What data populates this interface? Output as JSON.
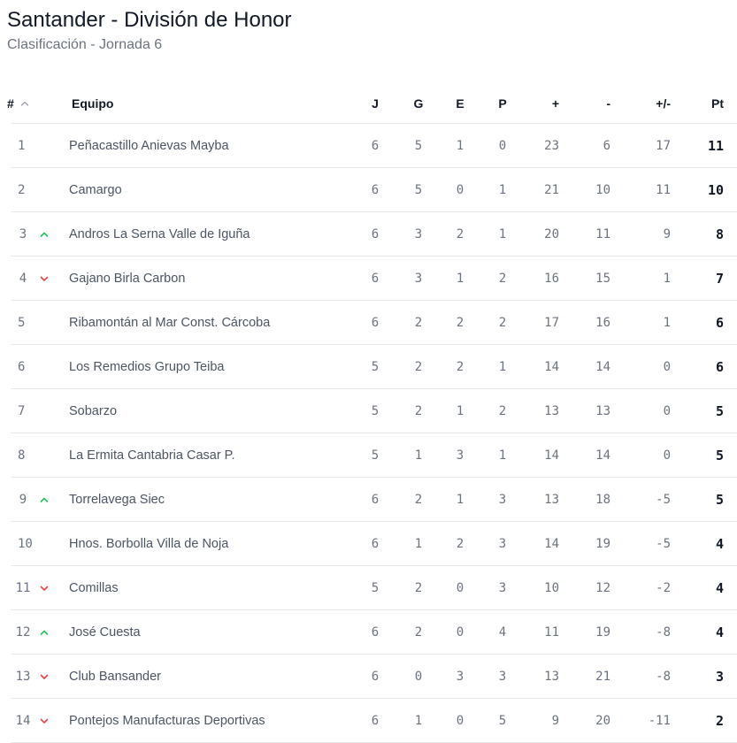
{
  "header": {
    "title": "Santander - División de Honor",
    "subtitle": "Clasificación - Jornada 6"
  },
  "columns": {
    "pos": "#",
    "team": "Equipo",
    "j": "J",
    "g": "G",
    "e": "E",
    "p": "P",
    "gf": "+",
    "ga": "-",
    "dif": "+/-",
    "pt": "Pt"
  },
  "colors": {
    "up": "#22c55e",
    "down": "#ef4444"
  },
  "rows": [
    {
      "pos": "1",
      "trend": "none",
      "team": "Peñacastillo Anievas Mayba",
      "j": "6",
      "g": "5",
      "e": "1",
      "p": "0",
      "gf": "23",
      "ga": "6",
      "dif": "17",
      "pt": "11"
    },
    {
      "pos": "2",
      "trend": "none",
      "team": "Camargo",
      "j": "6",
      "g": "5",
      "e": "0",
      "p": "1",
      "gf": "21",
      "ga": "10",
      "dif": "11",
      "pt": "10"
    },
    {
      "pos": "3",
      "trend": "up",
      "team": "Andros La Serna Valle de Iguña",
      "j": "6",
      "g": "3",
      "e": "2",
      "p": "1",
      "gf": "20",
      "ga": "11",
      "dif": "9",
      "pt": "8"
    },
    {
      "pos": "4",
      "trend": "down",
      "team": "Gajano Birla Carbon",
      "j": "6",
      "g": "3",
      "e": "1",
      "p": "2",
      "gf": "16",
      "ga": "15",
      "dif": "1",
      "pt": "7"
    },
    {
      "pos": "5",
      "trend": "none",
      "team": "Ribamontán al Mar Const. Cárcoba",
      "j": "6",
      "g": "2",
      "e": "2",
      "p": "2",
      "gf": "17",
      "ga": "16",
      "dif": "1",
      "pt": "6"
    },
    {
      "pos": "6",
      "trend": "none",
      "team": "Los Remedios Grupo Teiba",
      "j": "5",
      "g": "2",
      "e": "2",
      "p": "1",
      "gf": "14",
      "ga": "14",
      "dif": "0",
      "pt": "6"
    },
    {
      "pos": "7",
      "trend": "none",
      "team": "Sobarzo",
      "j": "5",
      "g": "2",
      "e": "1",
      "p": "2",
      "gf": "13",
      "ga": "13",
      "dif": "0",
      "pt": "5"
    },
    {
      "pos": "8",
      "trend": "none",
      "team": "La Ermita Cantabria Casar P.",
      "j": "5",
      "g": "1",
      "e": "3",
      "p": "1",
      "gf": "14",
      "ga": "14",
      "dif": "0",
      "pt": "5"
    },
    {
      "pos": "9",
      "trend": "up",
      "team": "Torrelavega Siec",
      "j": "6",
      "g": "2",
      "e": "1",
      "p": "3",
      "gf": "13",
      "ga": "18",
      "dif": "-5",
      "pt": "5"
    },
    {
      "pos": "10",
      "trend": "none",
      "team": "Hnos. Borbolla Villa de Noja",
      "j": "6",
      "g": "1",
      "e": "2",
      "p": "3",
      "gf": "14",
      "ga": "19",
      "dif": "-5",
      "pt": "4"
    },
    {
      "pos": "11",
      "trend": "down",
      "team": "Comillas",
      "j": "5",
      "g": "2",
      "e": "0",
      "p": "3",
      "gf": "10",
      "ga": "12",
      "dif": "-2",
      "pt": "4"
    },
    {
      "pos": "12",
      "trend": "up",
      "team": "José Cuesta",
      "j": "6",
      "g": "2",
      "e": "0",
      "p": "4",
      "gf": "11",
      "ga": "19",
      "dif": "-8",
      "pt": "4"
    },
    {
      "pos": "13",
      "trend": "down",
      "team": "Club Bansander",
      "j": "6",
      "g": "0",
      "e": "3",
      "p": "3",
      "gf": "13",
      "ga": "21",
      "dif": "-8",
      "pt": "3"
    },
    {
      "pos": "14",
      "trend": "down",
      "team": "Pontejos Manufacturas Deportivas",
      "j": "6",
      "g": "1",
      "e": "0",
      "p": "5",
      "gf": "9",
      "ga": "20",
      "dif": "-11",
      "pt": "2"
    }
  ]
}
